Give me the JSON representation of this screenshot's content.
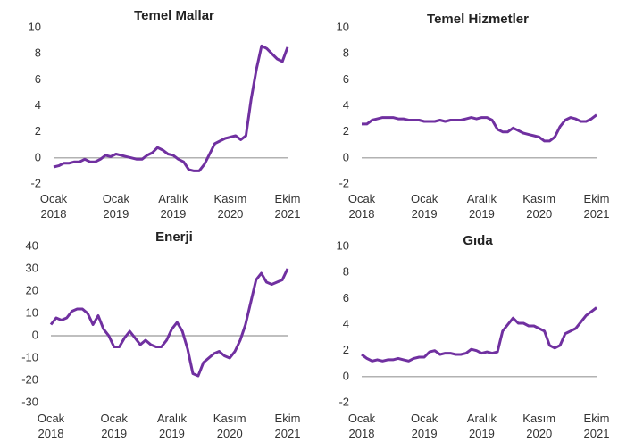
{
  "chart_data": [
    {
      "type": "line",
      "title": "Temel Mallar",
      "categories": [
        "Ocak 2018",
        null,
        null,
        null,
        null,
        null,
        null,
        null,
        null,
        null,
        null,
        null,
        "Ocak 2019",
        null,
        null,
        null,
        null,
        null,
        null,
        null,
        null,
        null,
        null,
        "Aralık 2019",
        null,
        null,
        null,
        null,
        null,
        null,
        null,
        null,
        null,
        null,
        "Kasım 2020",
        null,
        null,
        null,
        null,
        null,
        null,
        null,
        null,
        null,
        null,
        "Ekim 2021"
      ],
      "series": [
        {
          "name": "Temel Mallar",
          "color": "#7030a0",
          "values": [
            -0.7,
            -0.6,
            -0.4,
            -0.4,
            -0.3,
            -0.3,
            -0.1,
            -0.3,
            -0.3,
            -0.1,
            0.2,
            0.1,
            0.3,
            0.2,
            0.1,
            0,
            -0.1,
            -0.1,
            0.2,
            0.4,
            0.8,
            0.6,
            0.3,
            0.2,
            -0.1,
            -0.3,
            -0.9,
            -1.0,
            -1.0,
            -0.5,
            0.3,
            1.1,
            1.3,
            1.5,
            1.6,
            1.7,
            1.4,
            1.7,
            4.5,
            6.8,
            8.6,
            8.4,
            8.0,
            7.6,
            7.4,
            8.5
          ]
        }
      ],
      "ylim": [
        -2,
        10
      ],
      "yticks": [
        -2,
        0,
        2,
        4,
        6,
        8,
        10
      ]
    },
    {
      "type": "line",
      "title": "Temel Hizmetler",
      "categories": [
        "Ocak 2018",
        null,
        null,
        null,
        null,
        null,
        null,
        null,
        null,
        null,
        null,
        null,
        "Ocak 2019",
        null,
        null,
        null,
        null,
        null,
        null,
        null,
        null,
        null,
        null,
        "Aralık 2019",
        null,
        null,
        null,
        null,
        null,
        null,
        null,
        null,
        null,
        null,
        "Kasım 2020",
        null,
        null,
        null,
        null,
        null,
        null,
        null,
        null,
        null,
        null,
        "Ekim 2021"
      ],
      "series": [
        {
          "name": "Temel Hizmetler",
          "color": "#7030a0",
          "values": [
            2.6,
            2.6,
            2.9,
            3.0,
            3.1,
            3.1,
            3.1,
            3.0,
            3.0,
            2.9,
            2.9,
            2.9,
            2.8,
            2.8,
            2.8,
            2.9,
            2.8,
            2.9,
            2.9,
            2.9,
            3.0,
            3.1,
            3.0,
            3.1,
            3.1,
            2.9,
            2.2,
            2.0,
            2.0,
            2.3,
            2.1,
            1.9,
            1.8,
            1.7,
            1.6,
            1.3,
            1.3,
            1.6,
            2.4,
            2.9,
            3.1,
            3.0,
            2.8,
            2.8,
            3.0,
            3.3
          ]
        }
      ],
      "ylim": [
        -2,
        10
      ],
      "yticks": [
        -2,
        0,
        2,
        4,
        6,
        8,
        10
      ]
    },
    {
      "type": "line",
      "title": "Enerji",
      "categories": [
        "Ocak 2018",
        null,
        null,
        null,
        null,
        null,
        null,
        null,
        null,
        null,
        null,
        null,
        "Ocak 2019",
        null,
        null,
        null,
        null,
        null,
        null,
        null,
        null,
        null,
        null,
        "Aralık 2019",
        null,
        null,
        null,
        null,
        null,
        null,
        null,
        null,
        null,
        null,
        "Kasım 2020",
        null,
        null,
        null,
        null,
        null,
        null,
        null,
        null,
        null,
        null,
        "Ekim 2021"
      ],
      "series": [
        {
          "name": "Enerji",
          "color": "#7030a0",
          "values": [
            5,
            8,
            7,
            8,
            11,
            12,
            12,
            10,
            5,
            9,
            3,
            0,
            -5,
            -5,
            -1,
            2,
            -1,
            -4,
            -2,
            -4,
            -5,
            -5,
            -2,
            3,
            6,
            2,
            -6,
            -17,
            -18,
            -12,
            -10,
            -8,
            -7,
            -9,
            -10,
            -7,
            -2,
            5,
            15,
            25,
            28,
            24,
            23,
            24,
            25,
            30
          ]
        }
      ],
      "ylim": [
        -30,
        40
      ],
      "yticks": [
        -30,
        -20,
        -10,
        0,
        10,
        20,
        30,
        40
      ]
    },
    {
      "type": "line",
      "title": "Gıda",
      "categories": [
        "Ocak 2018",
        null,
        null,
        null,
        null,
        null,
        null,
        null,
        null,
        null,
        null,
        null,
        "Ocak 2019",
        null,
        null,
        null,
        null,
        null,
        null,
        null,
        null,
        null,
        null,
        "Aralık 2019",
        null,
        null,
        null,
        null,
        null,
        null,
        null,
        null,
        null,
        null,
        "Kasım 2020",
        null,
        null,
        null,
        null,
        null,
        null,
        null,
        null,
        null,
        null,
        "Ekim 2021"
      ],
      "series": [
        {
          "name": "Gıda",
          "color": "#7030a0",
          "values": [
            1.7,
            1.4,
            1.2,
            1.3,
            1.2,
            1.3,
            1.3,
            1.4,
            1.3,
            1.2,
            1.4,
            1.5,
            1.5,
            1.9,
            2.0,
            1.7,
            1.8,
            1.8,
            1.7,
            1.7,
            1.8,
            2.1,
            2.0,
            1.8,
            1.9,
            1.8,
            1.9,
            3.5,
            4.0,
            4.5,
            4.1,
            4.1,
            3.9,
            3.9,
            3.7,
            3.5,
            2.4,
            2.2,
            2.4,
            3.3,
            3.5,
            3.7,
            4.2,
            4.7,
            5.0,
            5.3
          ]
        }
      ],
      "ylim": [
        -2,
        10
      ],
      "yticks": [
        -2,
        0,
        2,
        4,
        6,
        8,
        10
      ]
    }
  ]
}
